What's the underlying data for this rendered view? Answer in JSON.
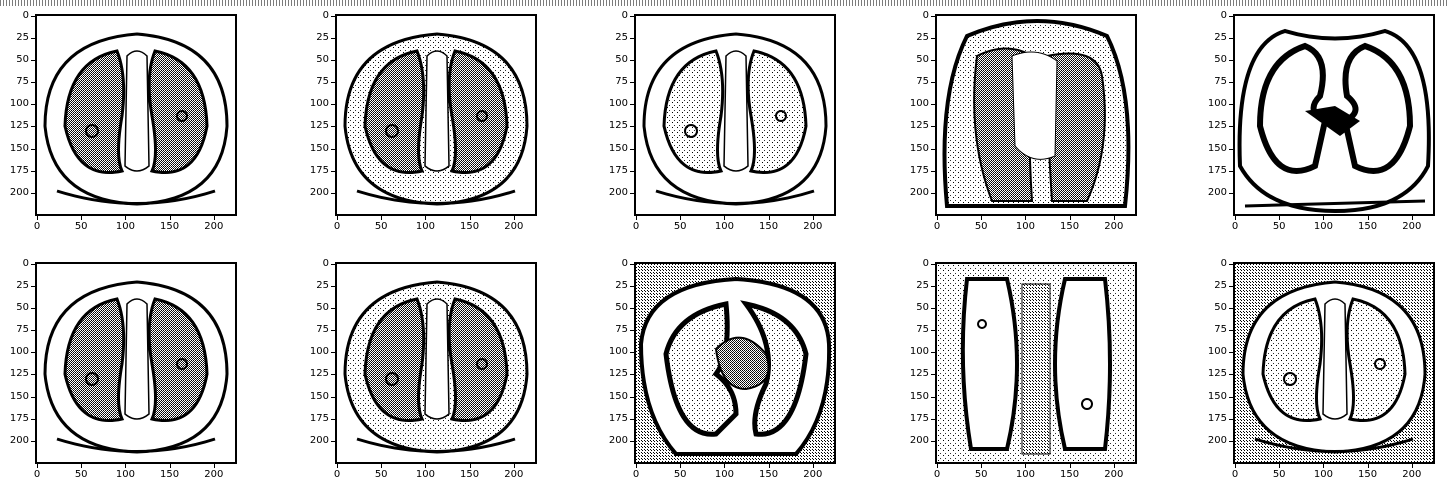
{
  "figure": {
    "panels": [
      {
        "id": "r1c1",
        "view": "axial-lungs-infiltrates"
      },
      {
        "id": "r1c2",
        "view": "axial-lungs-dense"
      },
      {
        "id": "r1c3",
        "view": "axial-lungs-lower"
      },
      {
        "id": "r1c4",
        "view": "axial-lungs-heart"
      },
      {
        "id": "r1c5",
        "view": "axial-lungs-clear"
      },
      {
        "id": "r2c1",
        "view": "axial-lungs-infiltrates"
      },
      {
        "id": "r2c2",
        "view": "axial-lungs-dense"
      },
      {
        "id": "r2c3",
        "view": "axial-lungs-heart-clear"
      },
      {
        "id": "r2c4",
        "view": "coronal-lungs"
      },
      {
        "id": "r2c5",
        "view": "axial-lungs-soft"
      }
    ],
    "y_ticks": [
      "0",
      "25",
      "50",
      "75",
      "100",
      "125",
      "150",
      "175",
      "200"
    ],
    "x_ticks": [
      "0",
      "50",
      "100",
      "150",
      "200"
    ]
  }
}
